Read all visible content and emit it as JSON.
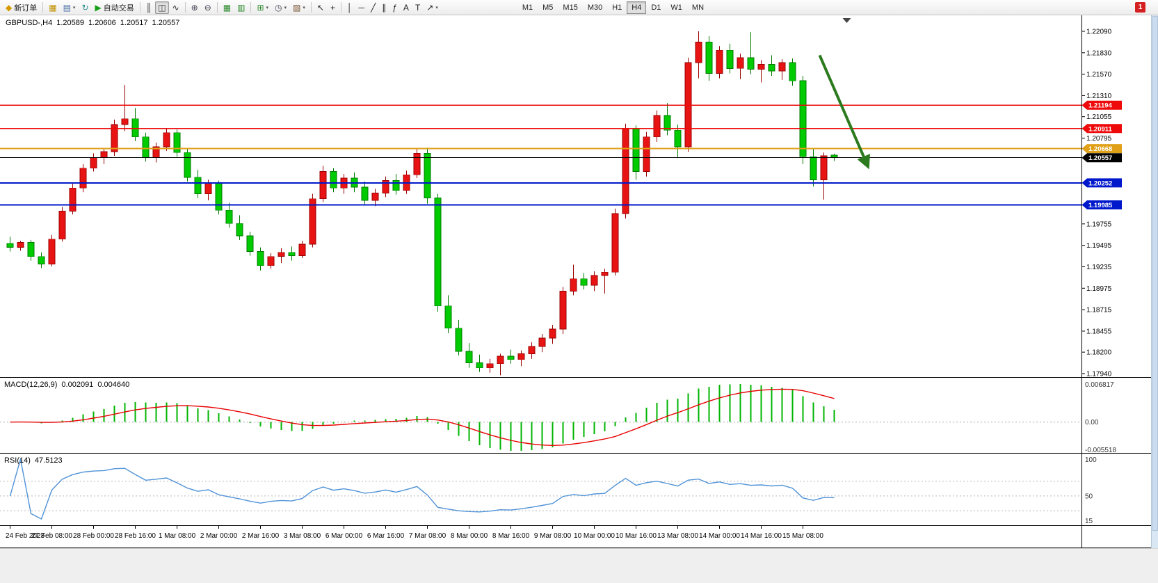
{
  "toolbar": {
    "timeframes": [
      "M1",
      "M5",
      "M15",
      "M30",
      "H1",
      "H4",
      "D1",
      "W1",
      "MN"
    ],
    "active_timeframe": "H4",
    "notification_count": "1",
    "items": [
      {
        "name": "new-order-button",
        "glyph": "◆",
        "color": "#d49a00",
        "label": "新订单"
      },
      {
        "sep": true
      },
      {
        "name": "charts-grid-button",
        "glyph": "▦",
        "color": "#bf9000"
      },
      {
        "name": "profiles-button",
        "glyph": "▤",
        "color": "#4a6fa5",
        "caret": true
      },
      {
        "name": "data-window-button",
        "glyph": "↻",
        "color": "#2f8f8f"
      },
      {
        "name": "autotrading-button",
        "glyph": "▶",
        "color": "#17a017",
        "label": "自动交易"
      },
      {
        "sep": true
      },
      {
        "name": "bar-chart-button",
        "glyph": "║",
        "color": "#333333"
      },
      {
        "name": "candlestick-chart-button",
        "glyph": "◫",
        "color": "#333333",
        "active": true
      },
      {
        "name": "line-chart-button",
        "glyph": "∿",
        "color": "#333333"
      },
      {
        "sep": true
      },
      {
        "name": "zoom-in-button",
        "glyph": "⊕",
        "color": "#444455"
      },
      {
        "name": "zoom-out-button",
        "glyph": "⊖",
        "color": "#444455"
      },
      {
        "sep": true
      },
      {
        "name": "tile-windows-button",
        "glyph": "▦",
        "color": "#2e8b2e"
      },
      {
        "name": "arrange-windows-button",
        "glyph": "▥",
        "color": "#2e8b2e"
      },
      {
        "sep": true
      },
      {
        "name": "indicators-button",
        "glyph": "⊞",
        "color": "#2e8b2e",
        "caret": true
      },
      {
        "name": "periods-button",
        "glyph": "◷",
        "color": "#444455",
        "caret": true
      },
      {
        "name": "templates-button",
        "glyph": "▨",
        "color": "#7a5230",
        "caret": true
      },
      {
        "sep": true
      },
      {
        "name": "cursor-button",
        "glyph": "↖",
        "color": "#222222"
      },
      {
        "name": "crosshair-button",
        "glyph": "+",
        "color": "#222222"
      },
      {
        "sep": true
      },
      {
        "name": "vertical-line-button",
        "glyph": "│",
        "color": "#222222"
      },
      {
        "name": "horizontal-line-button",
        "glyph": "─",
        "color": "#222222"
      },
      {
        "name": "trendline-button",
        "glyph": "╱",
        "color": "#222222"
      },
      {
        "name": "channel-button",
        "glyph": "∥",
        "color": "#222222"
      },
      {
        "name": "fibonacci-button",
        "glyph": "ƒ",
        "color": "#222222"
      },
      {
        "name": "text-button",
        "glyph": "A",
        "color": "#222222"
      },
      {
        "name": "label-button",
        "glyph": "T",
        "color": "#222222"
      },
      {
        "name": "arrows-button",
        "glyph": "↗",
        "color": "#222222",
        "caret": true
      }
    ]
  },
  "chart": {
    "symbol": "GBPUSD-,H4",
    "open": "1.20589",
    "high": "1.20606",
    "low": "1.20517",
    "close": "1.20557"
  },
  "macd": {
    "label": "MACD(12,26,9)",
    "value": "0.002091",
    "signal": "0.004640",
    "axis_labels": [
      "0.006817",
      "0.00",
      "-0.005518"
    ],
    "histogram_color": "#00b400",
    "signal_color": "#e80000"
  },
  "rsi": {
    "label": "RSI(14)",
    "value": "47.5123",
    "axis_labels": [
      "100",
      "50",
      "15"
    ],
    "levels": [
      70,
      50,
      30
    ],
    "line_color": "#4f92d8"
  },
  "chart_data": {
    "type": "candlestick",
    "symbol": "GBPUSD",
    "timeframe": "H4",
    "ylim": [
      1.1794,
      1.2209
    ],
    "colors": {
      "bull": "#e81414",
      "bear": "#00ca00",
      "bull_dark": "#9a0000",
      "bear_dark": "#007a00"
    },
    "candles": [
      [
        1.1952,
        1.196,
        1.1942,
        1.1947
      ],
      [
        1.1947,
        1.1955,
        1.1943,
        1.1953
      ],
      [
        1.1953,
        1.1956,
        1.1931,
        1.1936
      ],
      [
        1.1936,
        1.1941,
        1.1922,
        1.1927
      ],
      [
        1.1927,
        1.1962,
        1.1924,
        1.1957
      ],
      [
        1.1957,
        1.1996,
        1.1954,
        1.1991
      ],
      [
        1.1991,
        1.2024,
        1.1987,
        1.2019
      ],
      [
        1.2019,
        1.2048,
        1.2014,
        1.2043
      ],
      [
        1.2043,
        1.2061,
        1.2039,
        1.2056
      ],
      [
        1.2056,
        1.2067,
        1.2048,
        1.2063
      ],
      [
        1.2063,
        1.2102,
        1.2058,
        1.2096
      ],
      [
        1.2096,
        1.2144,
        1.2088,
        1.2103
      ],
      [
        1.2103,
        1.2116,
        1.2076,
        1.2081
      ],
      [
        1.2081,
        1.2086,
        1.2051,
        1.2056
      ],
      [
        1.2056,
        1.2074,
        1.205,
        1.2069
      ],
      [
        1.2069,
        1.2091,
        1.2064,
        1.2086
      ],
      [
        1.2086,
        1.209,
        1.2057,
        1.2062
      ],
      [
        1.2062,
        1.2067,
        1.2027,
        1.2032
      ],
      [
        1.2032,
        1.2041,
        1.2007,
        1.2012
      ],
      [
        1.2012,
        1.2029,
        1.2004,
        1.2025
      ],
      [
        1.2025,
        1.2028,
        1.1987,
        1.1992
      ],
      [
        1.1992,
        1.2001,
        1.1971,
        1.1976
      ],
      [
        1.1976,
        1.1986,
        1.1956,
        1.1961
      ],
      [
        1.1961,
        1.1966,
        1.1937,
        1.1942
      ],
      [
        1.1942,
        1.1947,
        1.1919,
        1.1925
      ],
      [
        1.1925,
        1.194,
        1.1921,
        1.1936
      ],
      [
        1.1936,
        1.1946,
        1.1928,
        1.1941
      ],
      [
        1.1941,
        1.1948,
        1.1931,
        1.1937
      ],
      [
        1.1937,
        1.1955,
        1.1934,
        1.1951
      ],
      [
        1.1951,
        1.2012,
        1.1947,
        1.2006
      ],
      [
        1.2006,
        1.2046,
        1.2002,
        1.2039
      ],
      [
        1.2039,
        1.2043,
        1.2014,
        1.2019
      ],
      [
        1.2019,
        1.2036,
        1.2012,
        1.2031
      ],
      [
        1.2031,
        1.2038,
        1.2014,
        1.202
      ],
      [
        1.202,
        1.2027,
        1.1999,
        1.2004
      ],
      [
        1.2004,
        1.2018,
        1.1997,
        1.2013
      ],
      [
        1.2013,
        1.2033,
        1.2008,
        1.2028
      ],
      [
        1.2028,
        1.2036,
        1.2011,
        1.2016
      ],
      [
        1.2016,
        1.204,
        1.2012,
        1.2035
      ],
      [
        1.2035,
        1.2066,
        1.2031,
        1.2061
      ],
      [
        1.2061,
        1.2068,
        1.2,
        1.2007
      ],
      [
        1.2007,
        1.2012,
        1.1869,
        1.1876
      ],
      [
        1.1876,
        1.1889,
        1.1843,
        1.1849
      ],
      [
        1.1849,
        1.1859,
        1.1816,
        1.1821
      ],
      [
        1.1821,
        1.1831,
        1.1801,
        1.1807
      ],
      [
        1.1807,
        1.1817,
        1.1796,
        1.1801
      ],
      [
        1.1801,
        1.1812,
        1.1795,
        1.1806
      ],
      [
        1.1806,
        1.1818,
        1.1792,
        1.1815
      ],
      [
        1.1815,
        1.1823,
        1.1806,
        1.1811
      ],
      [
        1.1811,
        1.1822,
        1.1803,
        1.1818
      ],
      [
        1.1818,
        1.1832,
        1.1812,
        1.1827
      ],
      [
        1.1827,
        1.1842,
        1.182,
        1.1837
      ],
      [
        1.1837,
        1.1853,
        1.183,
        1.1848
      ],
      [
        1.1848,
        1.1899,
        1.1842,
        1.1894
      ],
      [
        1.1894,
        1.1926,
        1.1889,
        1.1909
      ],
      [
        1.1909,
        1.1916,
        1.1896,
        1.1901
      ],
      [
        1.1901,
        1.1918,
        1.1894,
        1.1913
      ],
      [
        1.1913,
        1.1921,
        1.1891,
        1.1917
      ],
      [
        1.1917,
        1.1994,
        1.1913,
        1.1988
      ],
      [
        1.1988,
        1.2097,
        1.1982,
        1.2091
      ],
      [
        1.2091,
        1.2095,
        1.2029,
        1.2039
      ],
      [
        1.2039,
        1.2087,
        1.2033,
        1.2081
      ],
      [
        1.2081,
        1.2113,
        1.2075,
        1.2107
      ],
      [
        1.2107,
        1.2122,
        1.2083,
        1.2089
      ],
      [
        1.2089,
        1.2096,
        1.2056,
        1.2069
      ],
      [
        1.2069,
        1.2177,
        1.2063,
        1.2171
      ],
      [
        1.2171,
        1.2209,
        1.2152,
        1.2196
      ],
      [
        1.2196,
        1.2203,
        1.2149,
        1.2158
      ],
      [
        1.2158,
        1.2191,
        1.2152,
        1.2186
      ],
      [
        1.2186,
        1.2194,
        1.2158,
        1.2164
      ],
      [
        1.2164,
        1.2182,
        1.2151,
        1.2177
      ],
      [
        1.2177,
        1.2208,
        1.2157,
        1.2163
      ],
      [
        1.2163,
        1.2174,
        1.2147,
        1.2169
      ],
      [
        1.2169,
        1.218,
        1.2155,
        1.2161
      ],
      [
        1.2161,
        1.2175,
        1.215,
        1.2171
      ],
      [
        1.2171,
        1.2176,
        1.2143,
        1.2149
      ],
      [
        1.2149,
        1.2155,
        1.2048,
        1.2057
      ],
      [
        1.2057,
        1.2067,
        1.2021,
        1.2029
      ],
      [
        1.2029,
        1.2062,
        1.2005,
        1.2058
      ],
      [
        1.20589,
        1.20606,
        1.20517,
        1.20557
      ]
    ],
    "label_every": 4,
    "time_labels": [
      "24 Feb 2023",
      "27 Feb 08:00",
      "28 Feb 00:00",
      "28 Feb 16:00",
      "1 Mar 08:00",
      "2 Mar 00:00",
      "2 Mar 16:00",
      "3 Mar 08:00",
      "6 Mar 00:00",
      "6 Mar 16:00",
      "7 Mar 08:00",
      "8 Mar 00:00",
      "8 Mar 16:00",
      "9 Mar 08:00",
      "10 Mar 00:00",
      "10 Mar 16:00",
      "13 Mar 08:00",
      "14 Mar 00:00",
      "14 Mar 16:00",
      "15 Mar 08:00"
    ],
    "price_ticks": [
      "1.22090",
      "1.21830",
      "1.21570",
      "1.21310",
      "1.21055",
      "1.20795",
      "1.19755",
      "1.19495",
      "1.19235",
      "1.18975",
      "1.18715",
      "1.18455",
      "1.18200",
      "1.17940"
    ],
    "hlines": [
      {
        "price": 1.21194,
        "label": "1.21194",
        "color": "#ee0a0a",
        "width": 1.3
      },
      {
        "price": 1.20911,
        "label": "1.20911",
        "color": "#ee0a0a",
        "width": 1.3
      },
      {
        "price": 1.20668,
        "label": "1.20668",
        "color": "#e0a018",
        "width": 2
      },
      {
        "price": 1.20557,
        "label": "1.20557",
        "color": "#000000",
        "width": 1
      },
      {
        "price": 1.20252,
        "label": "1.20252",
        "color": "#0018cc",
        "width": 2
      },
      {
        "price": 1.19985,
        "label": "1.19985",
        "color": "#0018cc",
        "width": 2
      }
    ],
    "annotations": [
      {
        "type": "arrow",
        "color": "#2c7a1e",
        "x1_index": 77.6,
        "y1_price": 1.218,
        "x2_index": 82.2,
        "y2_price": 1.2046
      }
    ],
    "shift_marker_index": 80.2,
    "sub_panels": [
      "macd",
      "rsi"
    ]
  }
}
